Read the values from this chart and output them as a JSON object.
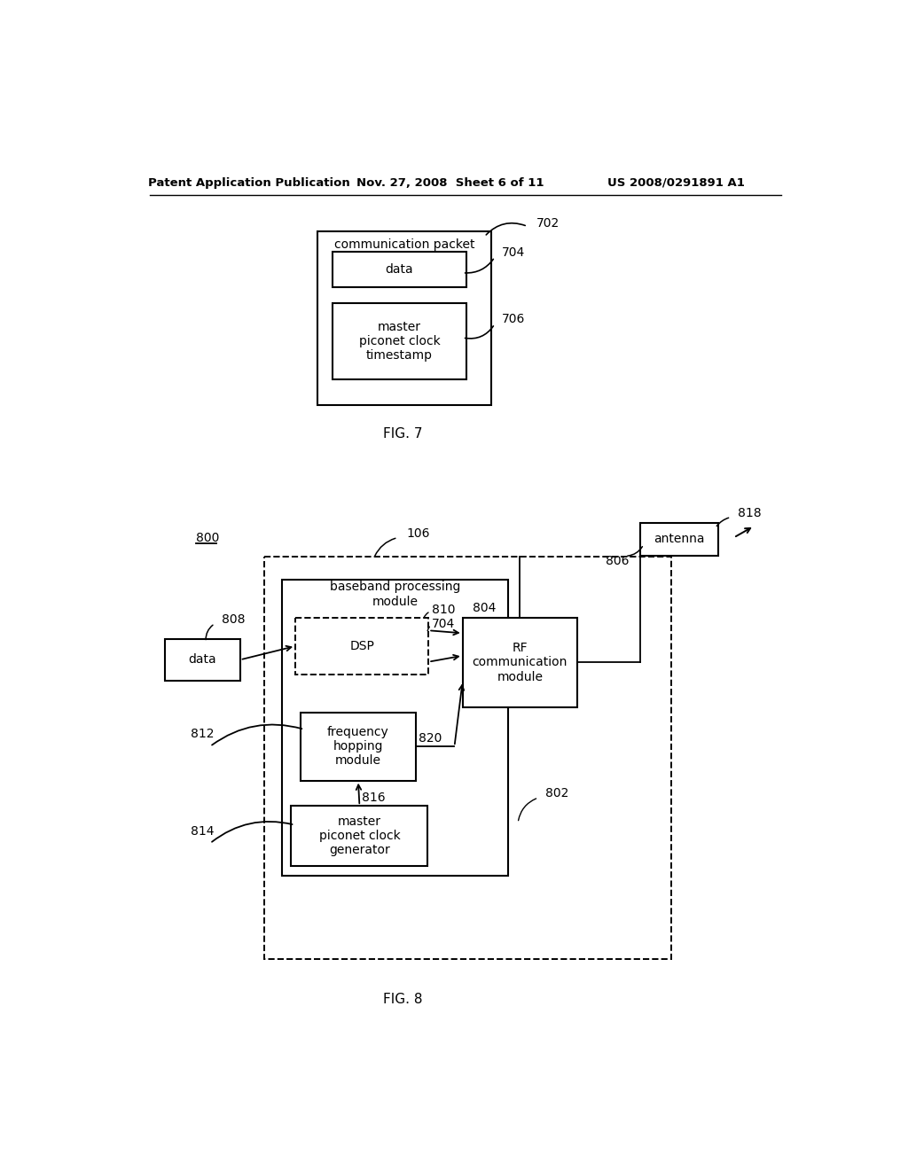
{
  "bg_color": "#ffffff",
  "header_left": "Patent Application Publication",
  "header_mid": "Nov. 27, 2008  Sheet 6 of 11",
  "header_right": "US 2008/0291891 A1",
  "fig7_label": "FIG. 7",
  "fig8_label": "FIG. 8",
  "fig7_ref": "702",
  "fig7_data_ref": "704",
  "fig7_timestamp_ref": "706",
  "fig7_comm_text": "communication packet",
  "fig7_data_text": "data",
  "fig7_ts_text": "master\npiconet clock\ntimestamp",
  "fig8_800": "800",
  "fig8_808": "808",
  "fig8_812": "812",
  "fig8_814": "814",
  "fig8_106": "106",
  "fig8_802": "802",
  "fig8_804": "804",
  "fig8_806": "806",
  "fig8_810": "810",
  "fig8_816": "816",
  "fig8_820": "820",
  "fig8_818": "818",
  "fig8_704": "704",
  "fig8_data_text": "data",
  "fig8_baseband_text": "baseband processing\nmodule",
  "fig8_dsp_text": "DSP",
  "fig8_freq_text": "frequency\nhopping\nmodule",
  "fig8_master_text": "master\npiconet clock\ngenerator",
  "fig8_rf_text": "RF\ncommunication\nmodule",
  "fig8_antenna_text": "antenna"
}
